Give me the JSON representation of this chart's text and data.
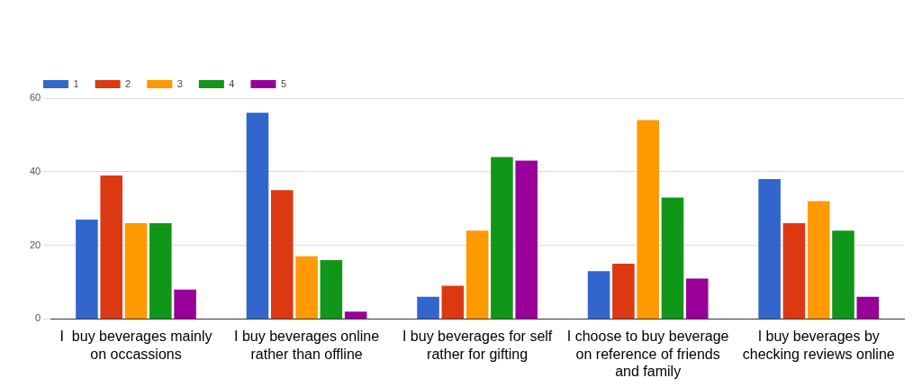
{
  "chart_data": {
    "type": "bar",
    "categories": [
      "I  buy beverages mainly on occassions",
      "I buy beverages online rather than offline",
      "I buy beverages for self rather for gifting",
      "I choose to buy beverage on reference of friends and family",
      "I buy beverages by checking reviews online"
    ],
    "series": [
      {
        "name": "1",
        "color": "#3366cc",
        "values": [
          27,
          56,
          6,
          13,
          38
        ]
      },
      {
        "name": "2",
        "color": "#dc3912",
        "values": [
          39,
          35,
          9,
          15,
          26
        ]
      },
      {
        "name": "3",
        "color": "#ff9900",
        "values": [
          26,
          17,
          24,
          54,
          32
        ]
      },
      {
        "name": "4",
        "color": "#109618",
        "values": [
          26,
          16,
          44,
          33,
          24
        ]
      },
      {
        "name": "5",
        "color": "#990099",
        "values": [
          8,
          2,
          43,
          11,
          6
        ]
      }
    ],
    "ylim": [
      0,
      60
    ],
    "yticks": [
      0,
      20,
      40,
      60
    ],
    "grid": "y",
    "legend": "top left"
  }
}
